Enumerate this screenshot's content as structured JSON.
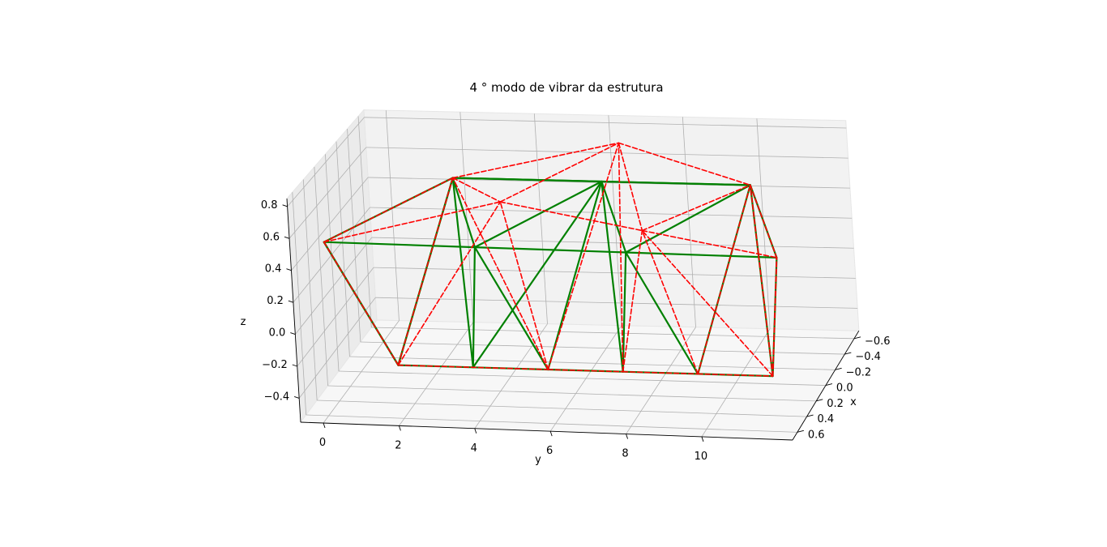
{
  "chart_data": {
    "type": "line",
    "title": "4 ° modo de vibrar da estrutura",
    "xlabel": "x",
    "ylabel": "y",
    "zlabel": "z",
    "x_ticks": [
      "−0.6",
      "−0.4",
      "−0.2",
      "0.0",
      "0.2",
      "0.4",
      "0.6"
    ],
    "y_ticks": [
      "0",
      "2",
      "4",
      "6",
      "8",
      "10"
    ],
    "z_ticks": [
      "0.8",
      "0.6",
      "0.4",
      "0.2",
      "0.0",
      "−0.2",
      "−0.4"
    ],
    "xlim": [
      -0.7,
      0.7
    ],
    "ylim": [
      -0.6,
      12.4
    ],
    "zlim": [
      -0.55,
      0.85
    ],
    "grid": true,
    "colors": {
      "original": "#008000",
      "deformed": "#ff0000",
      "pane": "#f2f2f2",
      "grid": "#b0b0b0"
    },
    "series": [
      {
        "style": "solid",
        "color": "#008000",
        "segments": [
          [
            [
              0.5,
              0,
              0.5
            ],
            [
              -0.5,
              2,
              0.5
            ]
          ],
          [
            [
              -0.5,
              2,
              0.5
            ],
            [
              0.5,
              4,
              0.5
            ]
          ],
          [
            [
              0.5,
              4,
              0.5
            ],
            [
              -0.5,
              6,
              0.5
            ]
          ],
          [
            [
              -0.5,
              6,
              0.5
            ],
            [
              0.5,
              8,
              0.5
            ]
          ],
          [
            [
              0.5,
              8,
              0.5
            ],
            [
              -0.5,
              10,
              0.5
            ]
          ],
          [
            [
              -0.5,
              10,
              0.5
            ],
            [
              0.5,
              12,
              0.5
            ]
          ],
          [
            [
              0.5,
              0,
              0.5
            ],
            [
              0.5,
              4,
              0.5
            ]
          ],
          [
            [
              0.5,
              4,
              0.5
            ],
            [
              0.5,
              8,
              0.5
            ]
          ],
          [
            [
              0.5,
              8,
              0.5
            ],
            [
              0.5,
              12,
              0.5
            ]
          ],
          [
            [
              -0.5,
              2,
              0.5
            ],
            [
              -0.5,
              6,
              0.5
            ]
          ],
          [
            [
              -0.5,
              6,
              0.5
            ],
            [
              -0.5,
              10,
              0.5
            ]
          ],
          [
            [
              -0.5,
              2,
              0.5
            ],
            [
              -0.5,
              10,
              0.5
            ]
          ],
          [
            [
              0.5,
              0,
              0.5
            ],
            [
              0,
              1,
              -0.5
            ]
          ],
          [
            [
              -0.5,
              2,
              0.5
            ],
            [
              0,
              1,
              -0.5
            ]
          ],
          [
            [
              0,
              1,
              -0.5
            ],
            [
              0,
              3,
              -0.5
            ]
          ],
          [
            [
              0,
              3,
              -0.5
            ],
            [
              0.5,
              4,
              0.5
            ]
          ],
          [
            [
              0,
              3,
              -0.5
            ],
            [
              -0.5,
              2,
              0.5
            ]
          ],
          [
            [
              0,
              3,
              -0.5
            ],
            [
              -0.5,
              6,
              0.5
            ]
          ],
          [
            [
              0,
              3,
              -0.5
            ],
            [
              0,
              5,
              -0.5
            ]
          ],
          [
            [
              0,
              5,
              -0.5
            ],
            [
              0.5,
              4,
              0.5
            ]
          ],
          [
            [
              0,
              5,
              -0.5
            ],
            [
              -0.5,
              6,
              0.5
            ]
          ],
          [
            [
              0,
              5,
              -0.5
            ],
            [
              0,
              7,
              -0.5
            ]
          ],
          [
            [
              0,
              7,
              -0.5
            ],
            [
              -0.5,
              6,
              0.5
            ]
          ],
          [
            [
              0,
              7,
              -0.5
            ],
            [
              0.5,
              8,
              0.5
            ]
          ],
          [
            [
              0,
              7,
              -0.5
            ],
            [
              0,
              9,
              -0.5
            ]
          ],
          [
            [
              0,
              9,
              -0.5
            ],
            [
              0.5,
              8,
              0.5
            ]
          ],
          [
            [
              0,
              9,
              -0.5
            ],
            [
              -0.5,
              10,
              0.5
            ]
          ],
          [
            [
              0,
              9,
              -0.5
            ],
            [
              0,
              11,
              -0.5
            ]
          ],
          [
            [
              0,
              11,
              -0.5
            ],
            [
              -0.5,
              10,
              0.5
            ]
          ],
          [
            [
              0,
              11,
              -0.5
            ],
            [
              0.5,
              12,
              0.5
            ]
          ],
          [
            [
              0.5,
              0,
              0.5
            ],
            [
              0,
              1,
              -0.5
            ]
          ],
          [
            [
              -0.5,
              2,
              0.5
            ],
            [
              0,
              1,
              -0.5
            ]
          ]
        ]
      },
      {
        "style": "dashed",
        "color": "#ff0000",
        "segments": [
          [
            [
              0.5,
              0,
              0.5
            ],
            [
              -0.5,
              2,
              0.5
            ]
          ],
          [
            [
              -0.5,
              2,
              0.5
            ],
            [
              0.4,
              4.6,
              0.75
            ]
          ],
          [
            [
              0.4,
              4.6,
              0.75
            ],
            [
              -0.45,
              6.6,
              0.78
            ]
          ],
          [
            [
              -0.45,
              6.6,
              0.78
            ],
            [
              0.45,
              8.4,
              0.62
            ]
          ],
          [
            [
              0.45,
              8.4,
              0.62
            ],
            [
              -0.5,
              10,
              0.5
            ]
          ],
          [
            [
              -0.5,
              10,
              0.5
            ],
            [
              0.5,
              12,
              0.5
            ]
          ],
          [
            [
              0.5,
              0,
              0.5
            ],
            [
              0.4,
              4.6,
              0.75
            ]
          ],
          [
            [
              0.4,
              4.6,
              0.75
            ],
            [
              0.45,
              8.4,
              0.62
            ]
          ],
          [
            [
              0.45,
              8.4,
              0.62
            ],
            [
              0.5,
              12,
              0.5
            ]
          ],
          [
            [
              -0.5,
              2,
              0.5
            ],
            [
              -0.45,
              6.6,
              0.78
            ]
          ],
          [
            [
              -0.45,
              6.6,
              0.78
            ],
            [
              -0.5,
              10,
              0.5
            ]
          ],
          [
            [
              0.5,
              0,
              0.5
            ],
            [
              0,
              1,
              -0.5
            ]
          ],
          [
            [
              -0.5,
              2,
              0.5
            ],
            [
              0,
              1,
              -0.5
            ]
          ],
          [
            [
              0,
              1,
              -0.5
            ],
            [
              0,
              5,
              -0.5
            ]
          ],
          [
            [
              0,
              5,
              -0.5
            ],
            [
              0.4,
              4.6,
              0.75
            ]
          ],
          [
            [
              0,
              5,
              -0.5
            ],
            [
              -0.5,
              2,
              0.5
            ]
          ],
          [
            [
              0,
              5,
              -0.5
            ],
            [
              -0.45,
              6.6,
              0.78
            ]
          ],
          [
            [
              0,
              5,
              -0.5
            ],
            [
              0,
              7,
              -0.5
            ]
          ],
          [
            [
              0,
              7,
              -0.5
            ],
            [
              -0.45,
              6.6,
              0.78
            ]
          ],
          [
            [
              0,
              7,
              -0.5
            ],
            [
              0.45,
              8.4,
              0.62
            ]
          ],
          [
            [
              0,
              7,
              -0.5
            ],
            [
              0,
              9,
              -0.5
            ]
          ],
          [
            [
              0,
              9,
              -0.5
            ],
            [
              0.45,
              8.4,
              0.62
            ]
          ],
          [
            [
              0,
              9,
              -0.5
            ],
            [
              -0.5,
              10,
              0.5
            ]
          ],
          [
            [
              0,
              9,
              -0.5
            ],
            [
              0,
              11,
              -0.5
            ]
          ],
          [
            [
              0,
              11,
              -0.5
            ],
            [
              -0.5,
              10,
              0.5
            ]
          ],
          [
            [
              0,
              11,
              -0.5
            ],
            [
              0.5,
              12,
              0.5
            ]
          ],
          [
            [
              0,
              1,
              -0.5
            ],
            [
              0.4,
              4.6,
              0.75
            ]
          ],
          [
            [
              0,
              11,
              -0.5
            ],
            [
              0.45,
              8.4,
              0.62
            ]
          ],
          [
            [
              0,
              11,
              -0.5
            ],
            [
              0.5,
              12,
              0.5
            ]
          ]
        ]
      }
    ]
  }
}
